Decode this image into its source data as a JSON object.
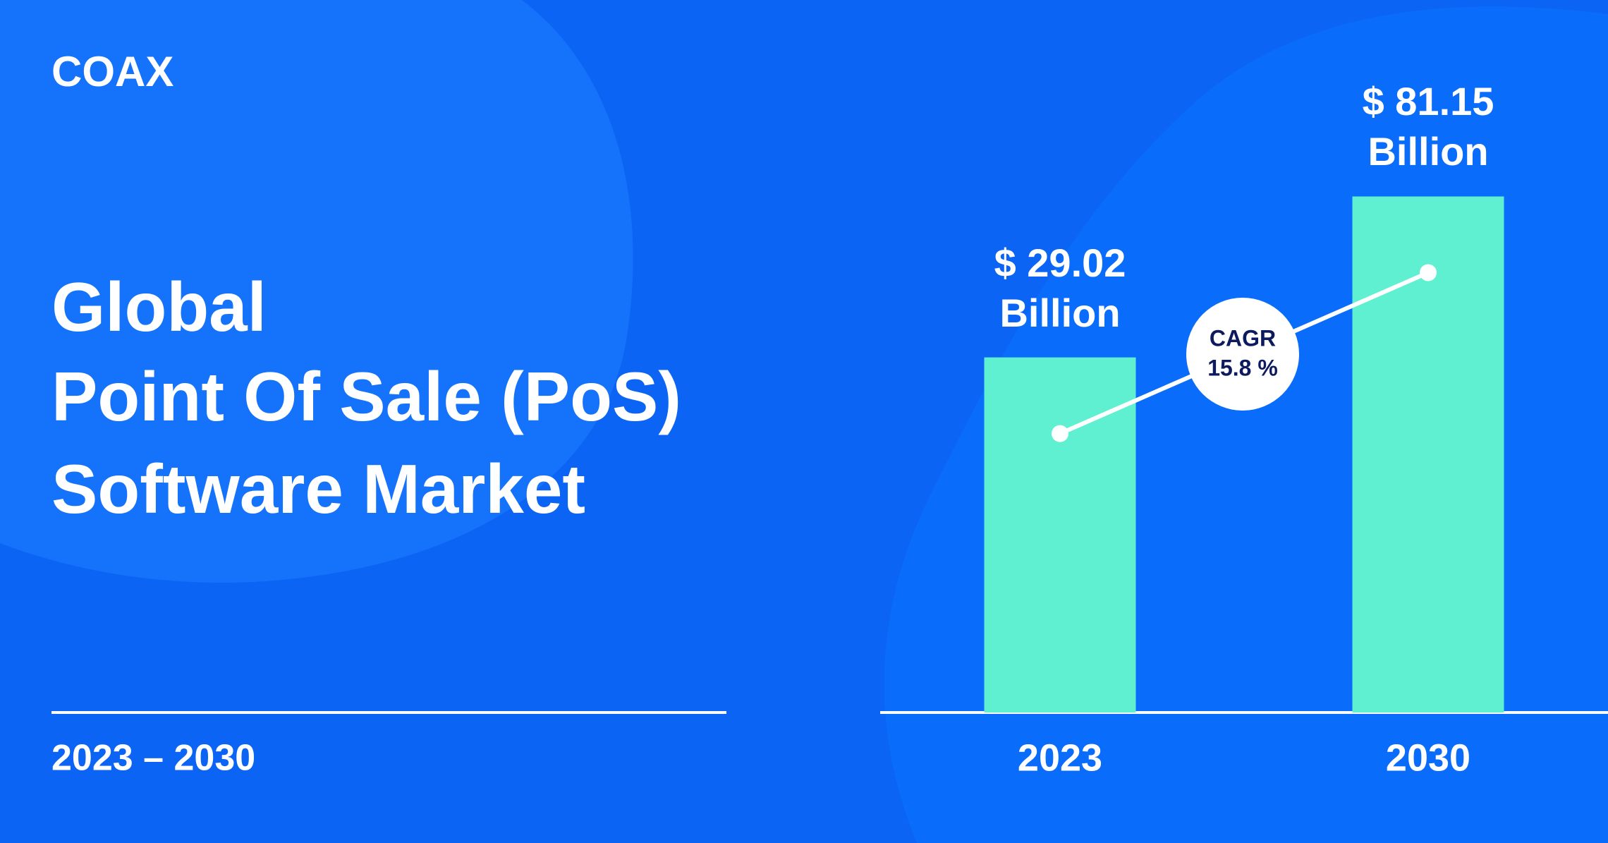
{
  "brand": "COAX",
  "chart_data": {
    "type": "bar",
    "title_lines": [
      "Global",
      "Point Of Sale (PoS)",
      "Software Market"
    ],
    "subtitle": "2023 – 2030",
    "categories": [
      "2023",
      "2030"
    ],
    "values": [
      29.02,
      81.15
    ],
    "value_labels": [
      "$ 29.02 Billion",
      "$ 81.15 Billion"
    ],
    "color": "#5ff0d2",
    "ylim": [
      -86,
      100
    ],
    "annotation": {
      "label": "CAGR",
      "value": "15.8 %"
    }
  }
}
